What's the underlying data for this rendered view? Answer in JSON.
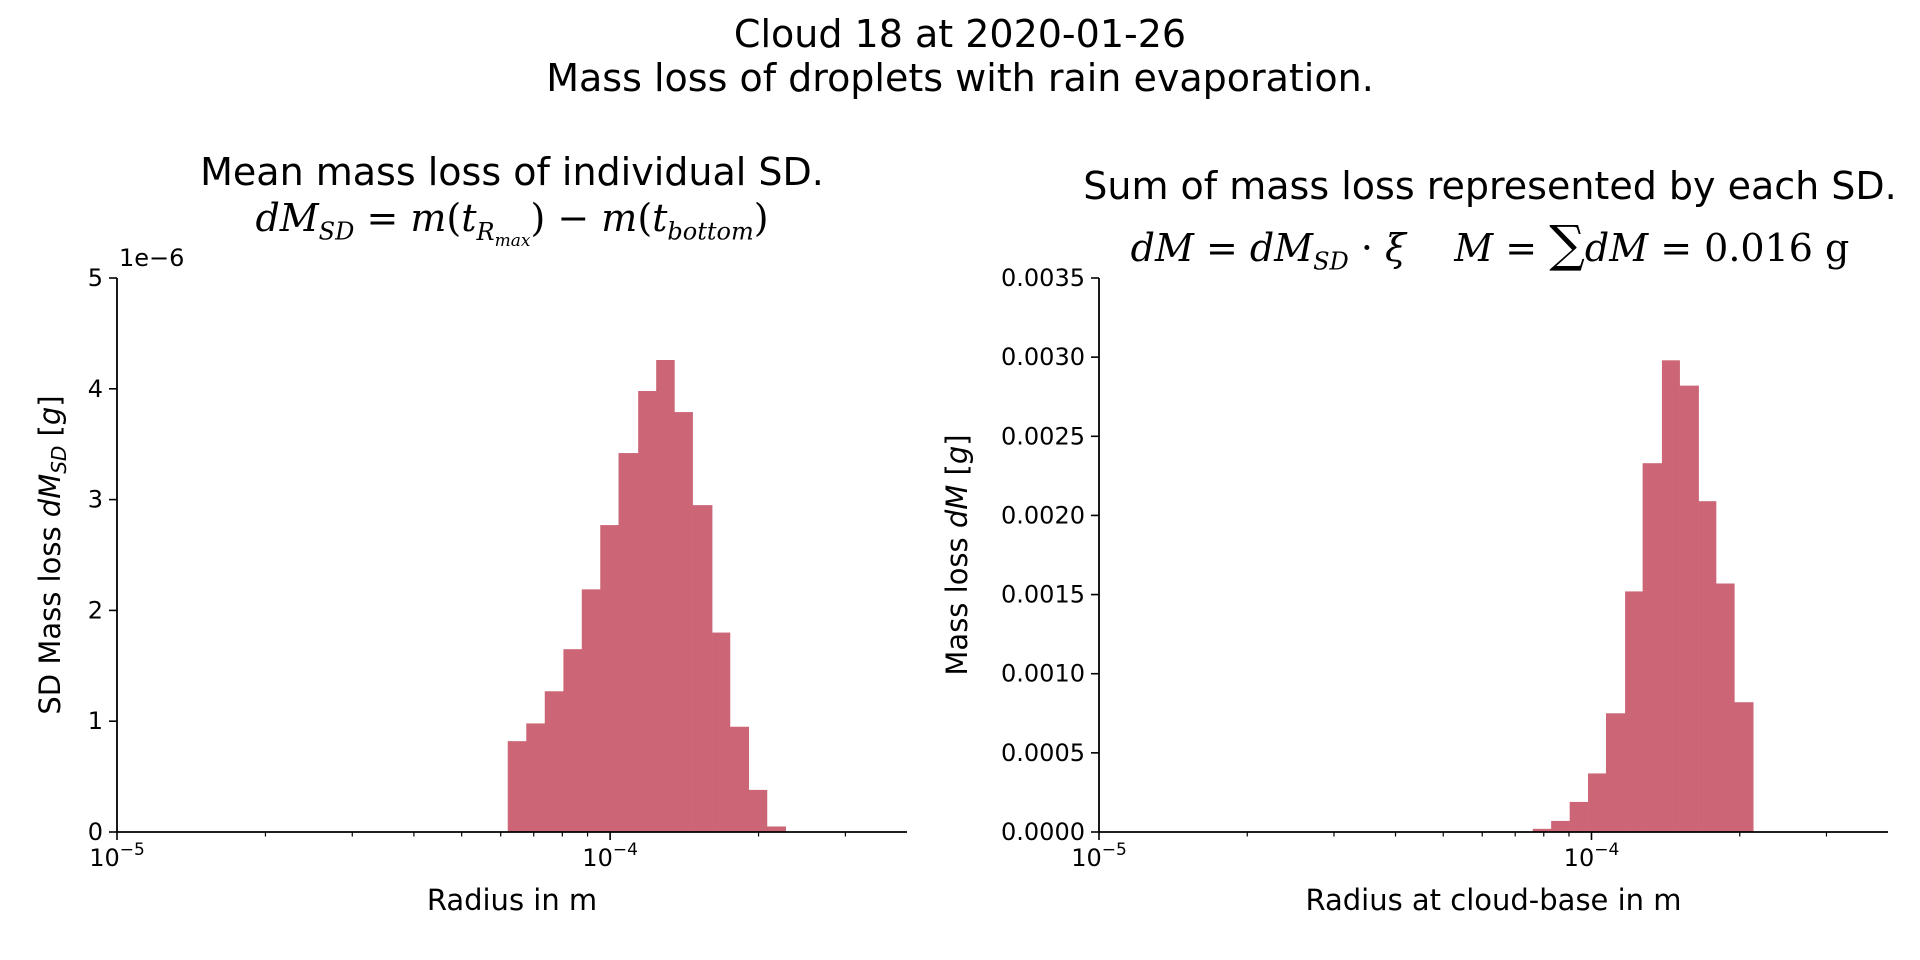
{
  "suptitle": {
    "line1": "Cloud 18 at 2020-01-26",
    "line2": "Mass loss of droplets with rain evaporation."
  },
  "colors": {
    "bar": "#cc6677",
    "axis": "#000000",
    "background": "#ffffff"
  },
  "panels": {
    "left": {
      "title_line1": "Mean mass loss of individual SD.",
      "title_formula": "dM_SD = m(t_Rmax) − m(t_bottom)",
      "offset_text": "1e−6"
    },
    "right": {
      "title_line1": "Sum of mass loss represented by each SD.",
      "title_formula": "dM = dM_SD · ξ    M = ∑dM = 0.016 g"
    }
  },
  "chart_data": [
    {
      "type": "bar",
      "title": "Mean mass loss of individual SD.",
      "xlabel": "Radius in m",
      "ylabel": "SD Mass loss dM_SD [g]",
      "xscale": "log",
      "xlim": [
        1e-05,
        0.0004
      ],
      "ylim": [
        0,
        5e-06
      ],
      "y_offset_label": "1e−6",
      "xticks": [
        {
          "value": 1e-05,
          "label": "10⁻⁵"
        },
        {
          "value": 0.0001,
          "label": "10⁻⁴"
        }
      ],
      "yticks": [
        {
          "value": 0,
          "label": "0"
        },
        {
          "value": 1e-06,
          "label": "1"
        },
        {
          "value": 2e-06,
          "label": "2"
        },
        {
          "value": 3e-06,
          "label": "3"
        },
        {
          "value": 4e-06,
          "label": "4"
        },
        {
          "value": 5e-06,
          "label": "5"
        }
      ],
      "bin_edges": [
        6.2e-05,
        6.76e-05,
        7.37e-05,
        8.04e-05,
        8.76e-05,
        9.55e-05,
        0.000104,
        0.000114,
        0.000124,
        0.000135,
        0.000147,
        0.000161,
        0.000175,
        0.000191,
        0.000208,
        0.000227,
        0.000247
      ],
      "values": [
        8.2e-07,
        9.8e-07,
        1.27e-06,
        1.65e-06,
        2.19e-06,
        2.77e-06,
        3.42e-06,
        3.98e-06,
        4.26e-06,
        3.79e-06,
        2.95e-06,
        1.8e-06,
        9.5e-07,
        3.8e-07,
        5e-08,
        0
      ],
      "grid": false
    },
    {
      "type": "bar",
      "title": "Sum of mass loss represented by each SD.",
      "xlabel": "Radius at cloud-base in m",
      "ylabel": "Mass loss dM [g]",
      "xscale": "log",
      "xlim": [
        1e-05,
        0.0004
      ],
      "ylim": [
        0,
        0.0035
      ],
      "xticks": [
        {
          "value": 1e-05,
          "label": "10⁻⁵"
        },
        {
          "value": 0.0001,
          "label": "10⁻⁴"
        }
      ],
      "yticks": [
        {
          "value": 0,
          "label": "0.0000"
        },
        {
          "value": 0.0005,
          "label": "0.0005"
        },
        {
          "value": 0.001,
          "label": "0.0010"
        },
        {
          "value": 0.0015,
          "label": "0.0015"
        },
        {
          "value": 0.002,
          "label": "0.0020"
        },
        {
          "value": 0.0025,
          "label": "0.0025"
        },
        {
          "value": 0.003,
          "label": "0.0030"
        },
        {
          "value": 0.0035,
          "label": "0.0035"
        }
      ],
      "bin_edges": [
        7.6e-05,
        8.28e-05,
        9.03e-05,
        9.84e-05,
        0.000107,
        0.000117,
        0.000127,
        0.000139,
        0.000151,
        0.000165,
        0.000179,
        0.000195,
        0.000213,
        0.000232
      ],
      "values": [
        2e-05,
        7e-05,
        0.00019,
        0.00037,
        0.00075,
        0.00152,
        0.00233,
        0.00298,
        0.00282,
        0.00209,
        0.00157,
        0.00082,
        0
      ],
      "grid": false
    }
  ]
}
